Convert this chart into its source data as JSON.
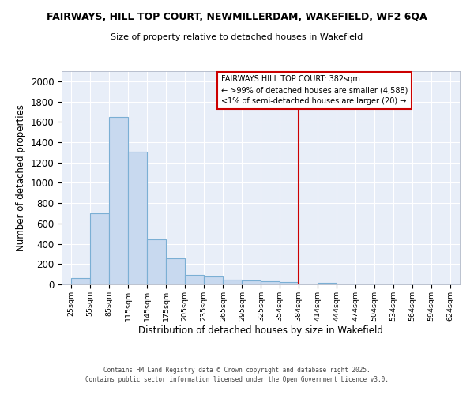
{
  "title_line1": "FAIRWAYS, HILL TOP COURT, NEWMILLERDAM, WAKEFIELD, WF2 6QA",
  "title_line2": "Size of property relative to detached houses in Wakefield",
  "xlabel": "Distribution of detached houses by size in Wakefield",
  "ylabel": "Number of detached properties",
  "bar_color": "#c8d9ef",
  "bar_edge_color": "#7bafd4",
  "background_color": "#e8eef8",
  "grid_color": "#ffffff",
  "property_line_x": 384,
  "property_line_color": "#cc0000",
  "legend_title": "FAIRWAYS HILL TOP COURT: 382sqm",
  "legend_line1": "← >99% of detached houses are smaller (4,588)",
  "legend_line2": "<1% of semi-detached houses are larger (20) →",
  "footer_line1": "Contains HM Land Registry data © Crown copyright and database right 2025.",
  "footer_line2": "Contains public sector information licensed under the Open Government Licence v3.0.",
  "bin_edges": [
    25,
    55,
    85,
    115,
    145,
    175,
    205,
    235,
    265,
    295,
    325,
    354,
    384,
    414,
    444,
    474,
    504,
    534,
    564,
    594,
    624
  ],
  "bin_labels": [
    "25sqm",
    "55sqm",
    "85sqm",
    "115sqm",
    "145sqm",
    "175sqm",
    "205sqm",
    "235sqm",
    "265sqm",
    "295sqm",
    "325sqm",
    "354sqm",
    "384sqm",
    "414sqm",
    "444sqm",
    "474sqm",
    "504sqm",
    "534sqm",
    "564sqm",
    "594sqm",
    "624sqm"
  ],
  "bar_heights": [
    65,
    700,
    1650,
    1310,
    440,
    255,
    90,
    80,
    50,
    40,
    30,
    25,
    0,
    15,
    0,
    0,
    0,
    0,
    0,
    0
  ],
  "ylim": [
    0,
    2100
  ],
  "yticks": [
    0,
    200,
    400,
    600,
    800,
    1000,
    1200,
    1400,
    1600,
    1800,
    2000
  ]
}
